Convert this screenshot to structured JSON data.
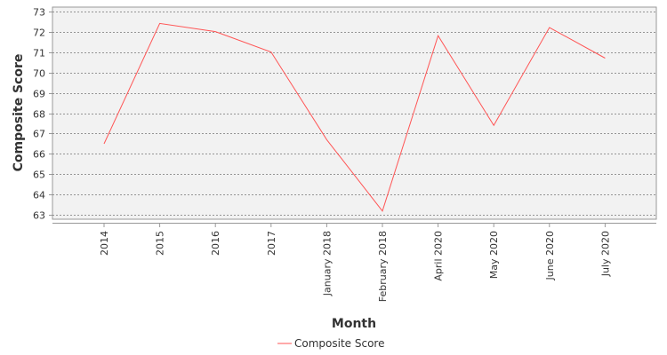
{
  "chart_data": {
    "type": "line",
    "title": "",
    "xlabel": "Month",
    "ylabel": "Composite Score",
    "categories": [
      "2014",
      "2015",
      "2016",
      "2017",
      "January 2018",
      "February 2018",
      "April 2020",
      "May 2020",
      "June 2020",
      "July 2020"
    ],
    "series": [
      {
        "name": "Composite Score",
        "color": "#ff5555",
        "values": [
          66.5,
          72.4,
          72.0,
          71.0,
          66.7,
          63.2,
          71.8,
          67.4,
          72.2,
          70.7
        ]
      }
    ],
    "ylim": [
      62.8,
      73.2
    ],
    "yticks": [
      "73",
      "72",
      "71",
      "70",
      "69",
      "68",
      "67",
      "66",
      "65",
      "64",
      "63"
    ],
    "ytick_values": [
      73,
      72,
      71,
      70,
      69,
      68,
      67,
      66,
      65,
      64,
      63
    ],
    "grid": true,
    "legend_position": "bottom-center",
    "colors": {
      "plot_background": "#f2f2f2",
      "gridline": "#777777",
      "axis": "#999999",
      "text": "#333333"
    }
  }
}
